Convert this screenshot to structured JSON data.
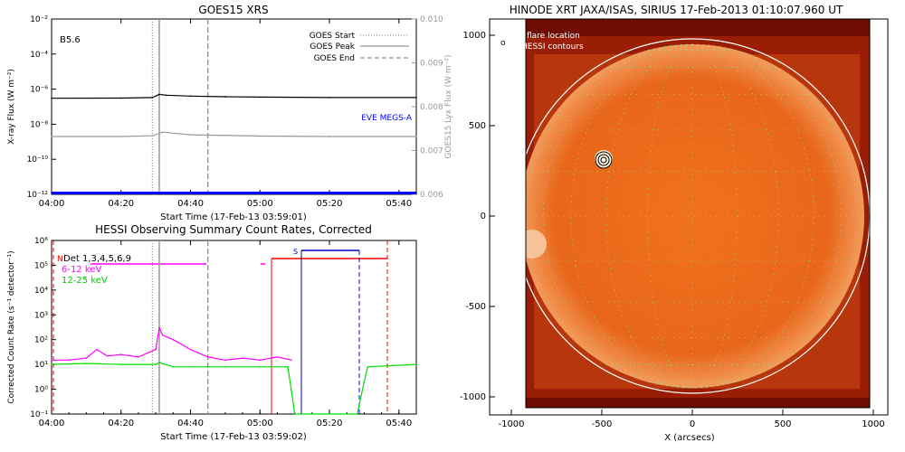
{
  "chart_data": [
    {
      "type": "line",
      "title": "GOES15 XRS",
      "xlabel": "Start Time (17-Feb-13 03:59:01)",
      "ylabel": "X-ray Flux (W m⁻²)",
      "y2label": "GOES15 Lyx Flux (W m⁻²)",
      "y_scale": "log",
      "ylim": [
        1e-12,
        0.01
      ],
      "y2lim": [
        0.006,
        0.01
      ],
      "xlim": [
        "04:00",
        "05:45"
      ],
      "x_tick_labels": [
        "04:00",
        "04:20",
        "04:40",
        "05:00",
        "05:20",
        "05:40"
      ],
      "y_tick_labels": [
        "10⁻¹²",
        "10⁻¹⁰",
        "10⁻⁸",
        "10⁻⁶",
        "10⁻⁴",
        "10⁻²"
      ],
      "y2_tick_labels": [
        "0.006",
        "0.007",
        "0.008",
        "0.009",
        "0.010"
      ],
      "annotation": "B5.6",
      "overlay_label": "EVE MEGS-A",
      "legend": [
        "GOES Start",
        "GOES Peak",
        "GOES End"
      ],
      "legend_position": "top-right",
      "event_lines": {
        "goes_start": "04:29",
        "goes_peak": "04:31",
        "goes_end": "04:45"
      },
      "series": [
        {
          "name": "",
          "color": "#000000",
          "x": [
            "04:00",
            "04:20",
            "04:29",
            "04:31",
            "04:33",
            "04:40",
            "04:50",
            "05:00",
            "05:20",
            "05:45"
          ],
          "values": [
            3e-07,
            3.1e-07,
            3.3e-07,
            5e-07,
            4.5e-07,
            4e-07,
            3.7e-07,
            3.5e-07,
            3.3e-07,
            3.3e-07
          ]
        },
        {
          "name": "",
          "color": "#999999",
          "x": [
            "04:00",
            "04:20",
            "04:29",
            "04:32",
            "04:40",
            "05:00",
            "05:20",
            "05:45"
          ],
          "values": [
            2e-09,
            2e-09,
            2.2e-09,
            3.5e-09,
            2.5e-09,
            2.1e-09,
            2e-09,
            2e-09
          ]
        },
        {
          "name": "EVE MEGS-A",
          "color": "#0000ff",
          "x": [
            "04:00",
            "05:45"
          ],
          "values": [
            1.2e-12,
            1.2e-12
          ]
        }
      ]
    },
    {
      "type": "line",
      "title": "HESSI Observing Summary Count Rates, Corrected",
      "xlabel": "Start Time (17-Feb-13 03:59:02)",
      "ylabel": "Corrected Count Rate (s⁻¹ detector⁻¹)",
      "y_scale": "log",
      "ylim": [
        0.1,
        1000000.0
      ],
      "xlim": [
        "04:00",
        "05:45"
      ],
      "x_tick_labels": [
        "04:00",
        "04:20",
        "04:40",
        "05:00",
        "05:20",
        "05:40"
      ],
      "y_tick_labels": [
        "10⁻¹",
        "10⁰",
        "10¹",
        "10²",
        "10³",
        "10⁴",
        "10⁵",
        "10⁶"
      ],
      "legend": [
        "Det 1,3,4,5,6,9",
        "6-12 keV",
        "12-25 keV"
      ],
      "legend_position": "top-left",
      "flags": {
        "N": "N",
        "S": "S"
      },
      "series": [
        {
          "name": "6-12 keV",
          "color": "#ff00ff",
          "x": [
            "04:00",
            "04:05",
            "04:10",
            "04:13",
            "04:16",
            "04:20",
            "04:25",
            "04:30",
            "04:31",
            "04:32",
            "04:35",
            "04:40",
            "04:45",
            "04:50",
            "04:55",
            "05:00",
            "05:05",
            "05:09"
          ],
          "values": [
            15,
            15,
            18,
            40,
            22,
            25,
            20,
            40,
            300,
            150,
            100,
            40,
            20,
            15,
            18,
            15,
            20,
            15
          ]
        },
        {
          "name": "12-25 keV",
          "color": "#00dd00",
          "x": [
            "04:00",
            "04:10",
            "04:20",
            "04:30",
            "04:31",
            "04:35",
            "04:40",
            "04:50",
            "05:00",
            "05:08",
            "05:09",
            "05:10",
            "05:28",
            "05:30",
            "05:31",
            "05:45"
          ],
          "values": [
            10,
            11,
            10,
            10,
            12,
            8,
            8,
            8,
            8,
            8,
            1,
            0.1,
            0.1,
            2,
            8,
            10
          ]
        }
      ]
    },
    {
      "type": "image",
      "title": "HINODE XRT JAXA/ISAS, SIRIUS 17-Feb-2013 01:10:07.960 UT",
      "xlabel": "X (arcsecs)",
      "ylabel": "",
      "xlim": [
        -1000,
        1000
      ],
      "ylim": [
        -1000,
        1000
      ],
      "x_tick_labels": [
        "-1000",
        "-500",
        "0",
        "500",
        "1000"
      ],
      "y_tick_labels": [
        "-1000",
        "-500",
        "0",
        "500",
        "1000"
      ],
      "legend": [
        "flare location",
        "HESSI contours"
      ],
      "flare_location": [
        -480,
        310
      ],
      "limb_radius": 975
    }
  ]
}
